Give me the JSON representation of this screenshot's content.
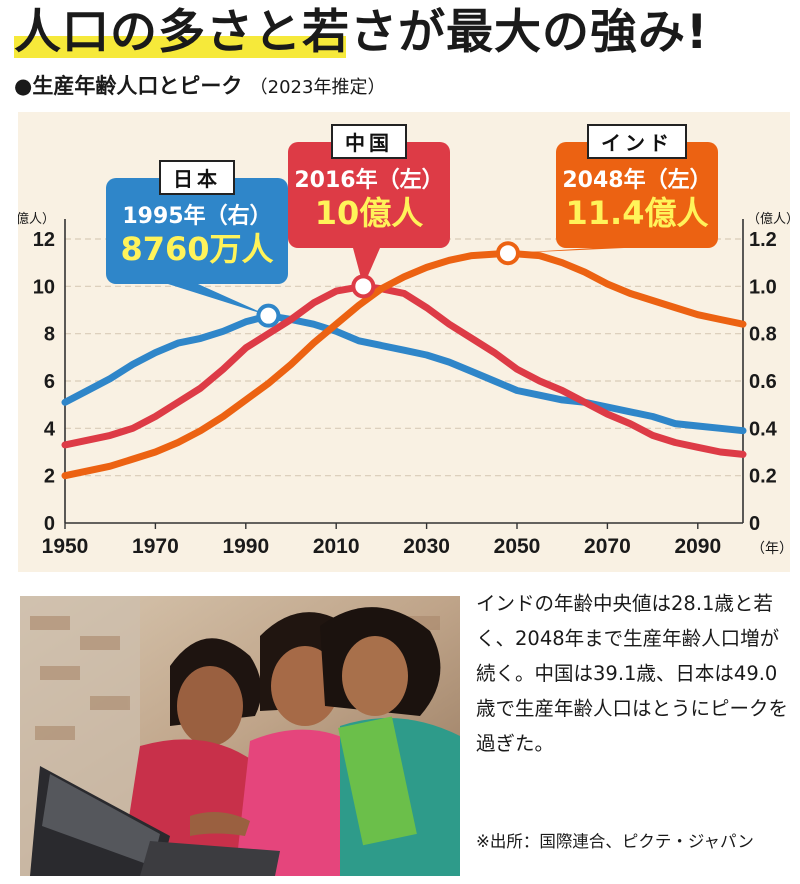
{
  "headline": "人口の多さと若さが最大の強み!",
  "subtitle": "●生産年齢人口とピーク",
  "subtitle_note": "（2023年推定）",
  "colors": {
    "japan": "#2f86c9",
    "china": "#dd3b46",
    "india": "#ec6212",
    "background": "#f9f1e3",
    "highlight": "#f6e93a",
    "callout_value": "#fff35a"
  },
  "callouts": {
    "japan": {
      "tag": "日本",
      "line1": "1995年（右）",
      "line2": "8760万人"
    },
    "china": {
      "tag": "中国",
      "line1": "2016年（左）",
      "line2": "10億人"
    },
    "india": {
      "tag": "インド",
      "line1": "2048年（左）",
      "line2": "11.4億人"
    }
  },
  "chart_data": {
    "type": "line",
    "x_ticks": [
      "1950",
      "1970",
      "1990",
      "2010",
      "2030",
      "2050",
      "2070",
      "2090"
    ],
    "x_unit": "（年）",
    "xlim": [
      1950,
      2100
    ],
    "left_axis": {
      "unit": "（億人）",
      "ylim": [
        0,
        12
      ],
      "ticks": [
        "0",
        "2",
        "4",
        "6",
        "8",
        "10",
        "12"
      ]
    },
    "right_axis": {
      "unit": "（億人）",
      "ylim": [
        0,
        1.2
      ],
      "ticks": [
        "0",
        "0.2",
        "0.4",
        "0.6",
        "0.8",
        "1.0",
        "1.2"
      ]
    },
    "grid": true,
    "series": [
      {
        "key": "japan",
        "axis": "right",
        "points": [
          [
            1950,
            0.51
          ],
          [
            1955,
            0.56
          ],
          [
            1960,
            0.61
          ],
          [
            1965,
            0.67
          ],
          [
            1970,
            0.72
          ],
          [
            1975,
            0.76
          ],
          [
            1980,
            0.78
          ],
          [
            1985,
            0.81
          ],
          [
            1990,
            0.85
          ],
          [
            1995,
            0.876
          ],
          [
            2000,
            0.86
          ],
          [
            2005,
            0.84
          ],
          [
            2010,
            0.81
          ],
          [
            2015,
            0.77
          ],
          [
            2020,
            0.75
          ],
          [
            2025,
            0.73
          ],
          [
            2030,
            0.71
          ],
          [
            2035,
            0.68
          ],
          [
            2040,
            0.64
          ],
          [
            2045,
            0.6
          ],
          [
            2050,
            0.56
          ],
          [
            2055,
            0.54
          ],
          [
            2060,
            0.52
          ],
          [
            2065,
            0.51
          ],
          [
            2070,
            0.49
          ],
          [
            2075,
            0.47
          ],
          [
            2080,
            0.45
          ],
          [
            2085,
            0.42
          ],
          [
            2090,
            0.41
          ],
          [
            2095,
            0.4
          ],
          [
            2100,
            0.39
          ]
        ]
      },
      {
        "key": "china",
        "axis": "left",
        "points": [
          [
            1950,
            3.3
          ],
          [
            1955,
            3.5
          ],
          [
            1960,
            3.7
          ],
          [
            1965,
            4.0
          ],
          [
            1970,
            4.5
          ],
          [
            1975,
            5.1
          ],
          [
            1980,
            5.7
          ],
          [
            1985,
            6.5
          ],
          [
            1990,
            7.4
          ],
          [
            1995,
            8.0
          ],
          [
            2000,
            8.6
          ],
          [
            2005,
            9.3
          ],
          [
            2010,
            9.8
          ],
          [
            2016,
            10.0
          ],
          [
            2020,
            9.9
          ],
          [
            2025,
            9.7
          ],
          [
            2030,
            9.1
          ],
          [
            2035,
            8.4
          ],
          [
            2040,
            7.8
          ],
          [
            2045,
            7.2
          ],
          [
            2050,
            6.5
          ],
          [
            2055,
            6.0
          ],
          [
            2060,
            5.6
          ],
          [
            2065,
            5.1
          ],
          [
            2070,
            4.6
          ],
          [
            2075,
            4.2
          ],
          [
            2080,
            3.7
          ],
          [
            2085,
            3.4
          ],
          [
            2090,
            3.2
          ],
          [
            2095,
            3.0
          ],
          [
            2100,
            2.9
          ]
        ]
      },
      {
        "key": "india",
        "axis": "left",
        "points": [
          [
            1950,
            2.0
          ],
          [
            1955,
            2.2
          ],
          [
            1960,
            2.4
          ],
          [
            1965,
            2.7
          ],
          [
            1970,
            3.0
          ],
          [
            1975,
            3.4
          ],
          [
            1980,
            3.9
          ],
          [
            1985,
            4.5
          ],
          [
            1990,
            5.2
          ],
          [
            1995,
            5.9
          ],
          [
            2000,
            6.7
          ],
          [
            2005,
            7.6
          ],
          [
            2010,
            8.4
          ],
          [
            2015,
            9.2
          ],
          [
            2020,
            9.9
          ],
          [
            2025,
            10.4
          ],
          [
            2030,
            10.8
          ],
          [
            2035,
            11.1
          ],
          [
            2040,
            11.3
          ],
          [
            2048,
            11.4
          ],
          [
            2055,
            11.3
          ],
          [
            2060,
            11.0
          ],
          [
            2065,
            10.6
          ],
          [
            2070,
            10.1
          ],
          [
            2075,
            9.7
          ],
          [
            2080,
            9.4
          ],
          [
            2085,
            9.1
          ],
          [
            2090,
            8.8
          ],
          [
            2095,
            8.6
          ],
          [
            2100,
            8.4
          ]
        ]
      }
    ],
    "peaks": [
      {
        "key": "japan",
        "x": 1995,
        "axis": "right",
        "y": 0.876
      },
      {
        "key": "china",
        "x": 2016,
        "axis": "left",
        "y": 10.0
      },
      {
        "key": "india",
        "x": 2048,
        "axis": "left",
        "y": 11.4
      }
    ]
  },
  "body_text": "インドの年齢中央値は28.1歳と若く、2048年まで生産年齢人口増が続く。中国は39.1歳、日本は49.0歳で生産年齢人口はとうにピークを過ぎた。",
  "source": "※出所：国際連合、ピクテ・ジャパン"
}
